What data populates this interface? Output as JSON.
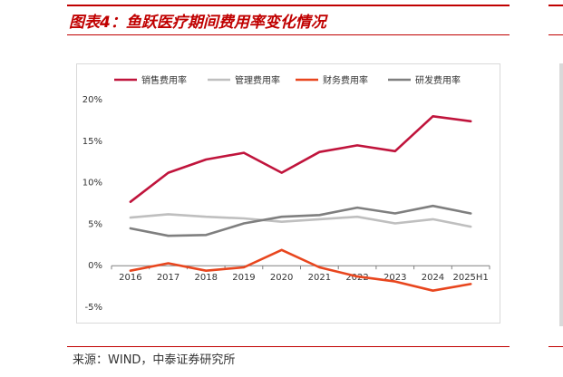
{
  "page": {
    "title": "图表4：鱼跃医疗期间费用率变化情况",
    "source": "来源：WIND，中泰证券研究所"
  },
  "colors": {
    "brand": "#c00000",
    "frame": "#d9d9d9"
  },
  "chart_data": {
    "type": "line",
    "title": "",
    "xlabel": "",
    "ylabel": "",
    "categories": [
      "2016",
      "2017",
      "2018",
      "2019",
      "2020",
      "2021",
      "2022",
      "2023",
      "2024",
      "2025H1"
    ],
    "y_ticks": [
      "20%",
      "15%",
      "10%",
      "5%",
      "0%",
      "-5%"
    ],
    "y_tick_values": [
      20,
      15,
      10,
      5,
      0,
      -5
    ],
    "ylim": [
      -5,
      20
    ],
    "grid": false,
    "legend_position": "top",
    "series": [
      {
        "name": "销售费用率",
        "color": "#c0143c",
        "values": [
          7.7,
          11.2,
          12.8,
          13.6,
          11.2,
          13.7,
          14.5,
          13.8,
          18.0,
          17.4
        ]
      },
      {
        "name": "管理费用率",
        "color": "#bfbfbf",
        "values": [
          5.8,
          6.2,
          5.9,
          5.7,
          5.3,
          5.6,
          5.9,
          5.1,
          5.6,
          4.7
        ]
      },
      {
        "name": "财务费用率",
        "color": "#e8461e",
        "values": [
          -0.6,
          0.3,
          -0.6,
          -0.2,
          1.9,
          -0.2,
          -1.3,
          -1.9,
          -3.0,
          -2.2
        ]
      },
      {
        "name": "研发费用率",
        "color": "#7f7f7f",
        "values": [
          4.5,
          3.6,
          3.7,
          5.1,
          5.9,
          6.1,
          7.0,
          6.3,
          7.2,
          6.3
        ]
      }
    ]
  }
}
